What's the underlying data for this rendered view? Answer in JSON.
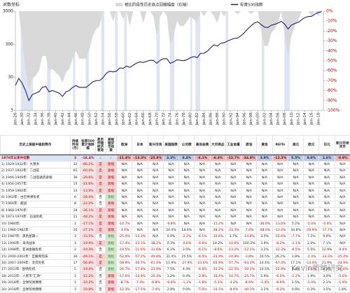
{
  "chart_data": {
    "type": "line",
    "axis_title": "对数坐标",
    "x": [
      1928,
      1929,
      1930,
      1931,
      1932,
      1933,
      1934,
      1935,
      1936,
      1937,
      1938,
      1939,
      1940,
      1941,
      1942,
      1943,
      1944,
      1945,
      1946,
      1947,
      1948,
      1949,
      1950,
      1951,
      1952,
      1953,
      1954,
      1955,
      1956,
      1957,
      1958,
      1959,
      1960,
      1961,
      1962,
      1963,
      1964,
      1965,
      1966,
      1967,
      1968,
      1969,
      1970,
      1971,
      1972,
      1973,
      1974,
      1975,
      1976,
      1977,
      1978,
      1979,
      1980,
      1981,
      1982,
      1983,
      1984,
      1985,
      1986,
      1987,
      1988,
      1989,
      1990,
      1991,
      1992,
      1993,
      1994,
      1995,
      1996,
      1997,
      1998,
      1999,
      2000,
      2001,
      2002,
      2003,
      2004,
      2005,
      2006,
      2007,
      2008,
      2009,
      2010,
      2011,
      2012,
      2013,
      2014,
      2015,
      2016,
      2017,
      2018,
      2019
    ],
    "series": [
      {
        "name": "相比阶段性历史高点回撤幅度（右轴）",
        "type": "area",
        "axis": "y2",
        "color": "#d9d9d9",
        "values": [
          0,
          0,
          -30,
          -58,
          -80,
          -68,
          -65,
          -60,
          -45,
          -45,
          -60,
          -58,
          -62,
          -65,
          -72,
          -62,
          -58,
          -48,
          -40,
          -48,
          -48,
          -48,
          -38,
          -25,
          -18,
          -15,
          0,
          0,
          0,
          -10,
          0,
          0,
          -8,
          0,
          -15,
          0,
          0,
          0,
          -12,
          0,
          0,
          -5,
          -25,
          -5,
          0,
          -5,
          -35,
          -25,
          -10,
          -15,
          -15,
          -10,
          -5,
          -8,
          -12,
          0,
          -5,
          0,
          0,
          -5,
          -12,
          0,
          -5,
          0,
          0,
          0,
          -3,
          0,
          0,
          0,
          -3,
          0,
          0,
          -20,
          -35,
          -35,
          -22,
          -18,
          -12,
          0,
          -25,
          -45,
          -25,
          -15,
          -10,
          0,
          0,
          0,
          -5,
          0,
          -5,
          0
        ]
      },
      {
        "name": "标普500指数",
        "type": "line",
        "color": "#1f1f7a",
        "values": [
          17,
          28,
          20,
          12,
          6,
          9,
          10,
          11,
          15,
          16,
          11,
          12,
          11,
          10,
          8,
          11,
          12,
          15,
          17,
          15,
          15,
          15,
          18,
          22,
          24,
          24,
          29,
          40,
          46,
          44,
          46,
          58,
          56,
          66,
          60,
          70,
          81,
          88,
          85,
          92,
          98,
          98,
          80,
          98,
          110,
          110,
          80,
          88,
          102,
          98,
          96,
          103,
          118,
          128,
          118,
          160,
          160,
          185,
          235,
          290,
          265,
          320,
          335,
          375,
          415,
          450,
          460,
          540,
          670,
          870,
          1080,
          1330,
          1430,
          1190,
          990,
          960,
          1130,
          1200,
          1310,
          1470,
          1220,
          870,
          1140,
          1280,
          1380,
          1640,
          1930,
          2060,
          2100,
          2450,
          2750,
          2900
        ]
      }
    ],
    "xlim": [
      1928,
      2019.5
    ],
    "xticks": [
      {
        "value": 1928,
        "label": "Jan-28"
      },
      {
        "value": 1930,
        "label": "Jan-30"
      },
      {
        "value": 1932,
        "label": "Jan-32"
      },
      {
        "value": 1934,
        "label": "Jan-34"
      },
      {
        "value": 1936,
        "label": "Jan-36"
      },
      {
        "value": 1938,
        "label": "Jan-38"
      },
      {
        "value": 1940,
        "label": "Jan-40"
      },
      {
        "value": 1942,
        "label": "Jan-42"
      },
      {
        "value": 1944,
        "label": "Jan-44"
      },
      {
        "value": 1946,
        "label": "Jan-46"
      },
      {
        "value": 1948,
        "label": "Jan-48"
      },
      {
        "value": 1950,
        "label": "Jan-50"
      },
      {
        "value": 1952,
        "label": "Jan-52"
      },
      {
        "value": 1954,
        "label": "Jan-54"
      },
      {
        "value": 1956,
        "label": "Jan-56"
      },
      {
        "value": 1958,
        "label": "Jan-58"
      },
      {
        "value": 1960,
        "label": "Jan-60"
      },
      {
        "value": 1962,
        "label": "Jan-62"
      },
      {
        "value": 1964,
        "label": "Jan-64"
      },
      {
        "value": 1966,
        "label": "Jan-66"
      },
      {
        "value": 1968,
        "label": "Jan-68"
      },
      {
        "value": 1970,
        "label": "Jan-70"
      },
      {
        "value": 1972,
        "label": "Jan-72"
      },
      {
        "value": 1974,
        "label": "Jan-74"
      },
      {
        "value": 1976,
        "label": "Jan-76"
      },
      {
        "value": 1978,
        "label": "Jan-78"
      },
      {
        "value": 1980,
        "label": "Jan-80"
      },
      {
        "value": 1982,
        "label": "Jan-82"
      },
      {
        "value": 1984,
        "label": "Jan-84"
      },
      {
        "value": 1986,
        "label": "Jan-86"
      },
      {
        "value": 1988,
        "label": "Jan-88"
      },
      {
        "value": 1990,
        "label": "Jan-90"
      },
      {
        "value": 1992,
        "label": "Jan-92"
      },
      {
        "value": 1994,
        "label": "Jan-94"
      },
      {
        "value": 1996,
        "label": "Jan-96"
      },
      {
        "value": 1998,
        "label": "Jan-98"
      },
      {
        "value": 2000,
        "label": "Jan-00"
      },
      {
        "value": 2002,
        "label": "Jan-02"
      },
      {
        "value": 2004,
        "label": "Jan-04"
      },
      {
        "value": 2006,
        "label": "Jan-06"
      },
      {
        "value": 2008,
        "label": "Jan-08"
      },
      {
        "value": 2010,
        "label": "Jan-10"
      },
      {
        "value": 2012,
        "label": "Jan-12"
      },
      {
        "value": 2014,
        "label": "Jan-14"
      },
      {
        "value": 2016,
        "label": "Jan-16"
      },
      {
        "value": 2018,
        "label": "Jan-18"
      }
    ],
    "ylim": [
      3,
      3000
    ],
    "yticks": [
      3,
      30,
      300,
      3000
    ],
    "log_y": true,
    "y2lim": [
      -100,
      0
    ],
    "y2ticks": [
      {
        "value": 0,
        "label": "0%"
      },
      {
        "value": -10,
        "label": "-10%"
      },
      {
        "value": -20,
        "label": "-20%"
      },
      {
        "value": -30,
        "label": "-30%"
      },
      {
        "value": -40,
        "label": "-40%"
      },
      {
        "value": -50,
        "label": "-50%"
      },
      {
        "value": -60,
        "label": "-60%"
      },
      {
        "value": -70,
        "label": "-70%"
      },
      {
        "value": -80,
        "label": "-80%"
      },
      {
        "value": -90,
        "label": "-90%"
      },
      {
        "value": -100,
        "label": "-100%"
      }
    ],
    "shaded_color": "#dfe4f2",
    "shaded_periods": [
      [
        1929.6,
        1933.2
      ],
      [
        1937.4,
        1938.5
      ],
      [
        1945.1,
        1945.8
      ],
      [
        1948.9,
        1949.8
      ],
      [
        1953.5,
        1954.4
      ],
      [
        1957.6,
        1958.4
      ],
      [
        1960.3,
        1961.1
      ],
      [
        1969.9,
        1970.9
      ],
      [
        1973.9,
        1975.2
      ],
      [
        1980.0,
        1980.5
      ],
      [
        1981.5,
        1982.9
      ],
      [
        1990.5,
        1991.2
      ],
      [
        2001.2,
        2001.9
      ],
      [
        2007.9,
        2009.5
      ]
    ]
  },
  "table": {
    "columns": [
      "历史上美股中级别熊市",
      "持续时间(月)",
      "标普500累计涨跌幅",
      "是否伴随经济衰退",
      "美联储货币政策",
      "欧洲",
      "日本",
      "新兴市场",
      "美国国债",
      "公司债",
      "高收益债",
      "大宗商品",
      "工业金属",
      "原油",
      "黄金",
      "REITs",
      "美元",
      "欧元",
      "日元",
      "新兴市场货币"
    ],
    "rows": [
      [
        "1976年以来中位数",
        "3",
        "-18.4%",
        "-",
        "-",
        "-11.4%",
        "-13.3%",
        "-25.8%",
        "3.3%",
        "0.4%",
        "-6.1%",
        "-6.6%",
        "-13.7%",
        "-24.8%",
        "3.9%",
        "-12.3%",
        "5.5%",
        "0.0%",
        "1.6%",
        "-0.9%"
      ],
      [
        "1) 1929-1932年：大萧条",
        "32",
        "-86.2%",
        "是",
        "紧缩",
        "N/A",
        "N/A",
        "N/A",
        "N/A",
        "N/A",
        "N/A",
        "N/A",
        "N/A",
        "N/A",
        "N/A",
        "N/A",
        "N/A",
        "N/A",
        "N/A",
        "N/A"
      ],
      [
        "2) 1937-1942年：二战前",
        "61",
        "-60.0%",
        "是",
        "紧缩",
        "N/A",
        "N/A",
        "N/A",
        "N/A",
        "N/A",
        "N/A",
        "N/A",
        "N/A",
        "N/A",
        "N/A",
        "N/A",
        "N/A",
        "N/A",
        "N/A",
        "N/A"
      ],
      [
        "3) 1946-1949年：二战后通货紧缩",
        "36",
        "-29.6%",
        "是",
        "紧缩",
        "N/A",
        "N/A",
        "N/A",
        "N/A",
        "N/A",
        "N/A",
        "N/A",
        "N/A",
        "N/A",
        "N/A",
        "N/A",
        "N/A",
        "N/A",
        "N/A",
        "N/A"
      ],
      [
        "4) 1956-1957年：",
        "15",
        "-21.6%",
        "是",
        "紧缩",
        "N/A",
        "N/A",
        "N/A",
        "N/A",
        "N/A",
        "N/A",
        "N/A",
        "N/A",
        "N/A",
        "N/A",
        "N/A",
        "N/A",
        "N/A",
        "N/A",
        "N/A"
      ],
      [
        "5) 1959-1960年：",
        "14",
        "-13.9%",
        "是",
        "紧缩",
        "N/A",
        "N/A",
        "N/A",
        "N/A",
        "N/A",
        "N/A",
        "N/A",
        "N/A",
        "N/A",
        "N/A",
        "N/A",
        "N/A",
        "N/A",
        "N/A",
        "N/A"
      ],
      [
        "6) 1962年：古巴导弹危机",
        "6",
        "-28.0%",
        "否",
        "宽松",
        "N/A",
        "N/A",
        "N/A",
        "N/A",
        "N/A",
        "N/A",
        "N/A",
        "N/A",
        "N/A",
        "N/A",
        "N/A",
        "N/A",
        "N/A",
        "N/A",
        "N/A"
      ],
      [
        "7) 1966年：越战",
        "8",
        "-22.2%",
        "否",
        "紧缩",
        "N/A",
        "N/A",
        "N/A",
        "N/A",
        "N/A",
        "N/A",
        "N/A",
        "N/A",
        "N/A",
        "N/A",
        "N/A",
        "N/A",
        "N/A",
        "N/A",
        "N/A"
      ],
      [
        "8) 1968-1970年：",
        "18",
        "-36.1%",
        "是",
        "紧缩",
        "N/A",
        "N/A",
        "N/A",
        "N/A",
        "N/A",
        "N/A",
        "N/A",
        "N/A",
        "N/A",
        "N/A",
        "N/A",
        "N/A",
        "N/A",
        "N/A",
        "N/A"
      ],
      [
        "9) 1973-1974年：石油危机",
        "21",
        "-48.2%",
        "是",
        "紧缩",
        "N/A",
        "N/A",
        "N/A",
        "N/A",
        "N/A",
        "N/A",
        "N/A",
        "N/A",
        "N/A",
        "N/A",
        "N/A",
        "N/A",
        "N/A",
        "N/A",
        "N/A"
      ],
      [
        "10) 1980年：",
        "2",
        "-17.1%",
        "是",
        "紧缩",
        "-14.7%",
        "N/A",
        "N/A",
        "-9.8%",
        "N/A",
        "N/A",
        "-11.2%",
        "N/A",
        "N/A",
        "-36.0%",
        "-13.0%",
        "5.2%",
        "-5.0%",
        "-4.4%",
        "N/A"
      ],
      [
        "11) 1980-1982年：",
        "20",
        "-27.1%",
        "是",
        "紧缩",
        "-3.4%",
        "N/A",
        "N/A",
        "24.0%",
        "18.6%",
        "N/A",
        "-28.2%",
        "-33.3%",
        "-7.6%",
        "-48.0%",
        "-13.4%",
        "34.8%",
        "-29.9%",
        "-17.7%",
        "N/A"
      ],
      [
        "12) 1987年：黑色星期一",
        "3",
        "-33.5%",
        "否",
        "宽松",
        "-25.4%",
        "-13.3%",
        "N/A",
        "0.9%",
        "-2.2%",
        "-6.1%",
        "-10.6%",
        "3.7%",
        "-14.8%",
        "3.5%",
        "-15.6%",
        "-7.7%",
        "7.1%",
        "9.0%",
        "N/A"
      ],
      [
        "13) 1990年：海湾战争",
        "3",
        "-19.9%",
        "是",
        "宽松",
        "-17.4%",
        "-23.1%",
        "-18.2%",
        "0.3%",
        "-0.6%",
        "-6.6%",
        "24.2%",
        "-10.6%",
        "100.2%",
        "3.9%",
        "-8.2%",
        "-2.1%",
        "2.0%",
        "7.1%",
        "N/A"
      ],
      [
        "14) 1998年：亚洲金融危机",
        "2",
        "-19.3%",
        "否",
        "宽松",
        "-19.5%",
        "-11.6%",
        "-31.6%",
        "6.2%",
        "3.5%",
        "-6.1%",
        "-8.6%",
        "-13.2%",
        "-12.1%",
        "3.2%",
        "-12.3%",
        "-6.5%",
        "5.5%",
        "12.9%",
        "-9.4%"
      ],
      [
        "15) 2000-2002年：互联网泡沫",
        "30",
        "-49.1%",
        "是",
        "宽松",
        "-52.9%",
        "-57.2%",
        "-49.8%",
        "31.4%",
        "25.5%",
        "-6.0%",
        "-23.9%",
        "-24.8%",
        "-3.8%",
        "10.5%",
        "26.2%",
        "1.8%",
        "-1.3%",
        "-13.3%",
        "-25.4%"
      ],
      [
        "16) 2007-2009年：次贷危机",
        "17",
        "-56.8%",
        "是",
        "宽松",
        "-58.9%",
        "-56.7%",
        "-61.4%",
        "11.9%",
        "-27.9%",
        "-23.6%",
        "-65.9%",
        "-57.7%",
        "-64.3%",
        "24.4%",
        "-67.4%",
        "17.1%",
        "-13.4%",
        "21.9%",
        "-24.9%"
      ],
      [
        "17) 2011年：欧债危机",
        "5",
        "-19.4%",
        "否",
        "宽松",
        "-26.7%",
        "-17.4%",
        "-23.9%",
        "7.5%",
        "4.4%",
        "-6.6%",
        "-15.2%",
        "-22.5%",
        "-20.1%",
        "14.5%",
        "-22.9%",
        "6.4%",
        "-5.6%",
        "4.3%",
        "-10.6%"
      ],
      [
        "18) 2015年：人民币\"汇改\"",
        "3",
        "-12.2%",
        "否",
        "紧缩",
        "-17.0%",
        "-10.9%",
        "-20.3%",
        "1.2%",
        "0.4%",
        "-2.8%",
        "-15.4%",
        "-14.7%",
        "-25.7%",
        "5.9%",
        "-6.5%",
        "-1.2%",
        "1.9%",
        "3.0%",
        "-5.6%"
      ],
      [
        "19) 2018年：全球贸易摩擦",
        "1",
        "-10.2%",
        "否",
        "紧缩",
        "-8.7%",
        "-7.4%",
        "-6.8%",
        "-0.6%",
        "-1.1%",
        "-1.8%",
        "-5.1%",
        "-3.2%",
        "-8.6%",
        "-1.4%",
        "-8.9%",
        "1.5%",
        "-1.0%",
        "2.1%",
        "-1.9%"
      ],
      [
        "20) 2018年：全球贸易摩擦",
        "3",
        "-19.8%",
        "否",
        "紧缩",
        "-12.3%",
        "-17.5%",
        "-7.4%",
        "2.8%",
        "0.6%",
        "-5.6%",
        "-14.1%",
        "-8.4%",
        "-40.1%",
        "3.2%",
        "-9.3%",
        "0.8%",
        "0.3%",
        "3.5%",
        "1.8%"
      ]
    ]
  },
  "watermark": "Kevin策略研究"
}
